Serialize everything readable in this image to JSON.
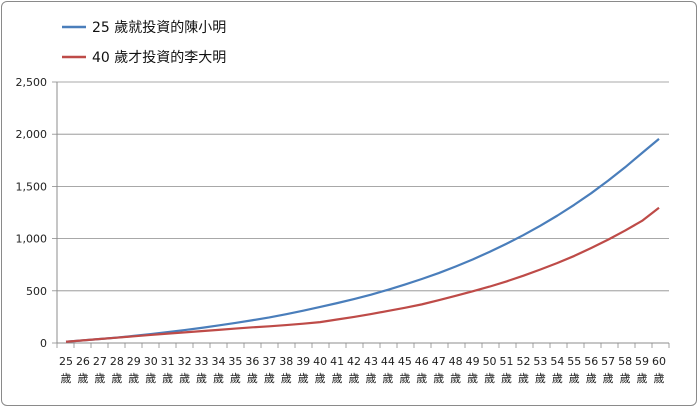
{
  "chart_data": {
    "type": "line",
    "categories": [
      "25 歲",
      "26 歲",
      "27 歲",
      "28 歲",
      "29 歲",
      "30 歲",
      "31 歲",
      "32 歲",
      "33 歲",
      "34 歲",
      "35 歲",
      "36 歲",
      "37 歲",
      "38 歲",
      "39 歲",
      "40 歲",
      "41 歲",
      "42 歲",
      "43 歲",
      "44 歲",
      "45 歲",
      "46 歲",
      "47 歲",
      "48 歲",
      "49 歲",
      "50 歲",
      "51 歲",
      "52 歲",
      "53 歲",
      "54 歲",
      "55 歲",
      "56 歲",
      "57 歲",
      "58 歲",
      "59 歲",
      "60 歲"
    ],
    "series": [
      {
        "name": "25 歲就投資的陳小明",
        "color": "#4a7ebb",
        "values": [
          12,
          25,
          38,
          52,
          68,
          85,
          104,
          124,
          145,
          168,
          192,
          218,
          245,
          276,
          310,
          345,
          382,
          421,
          463,
          510,
          560,
          613,
          670,
          733,
          800,
          873,
          951,
          1034,
          1124,
          1220,
          1324,
          1435,
          1555,
          1683,
          1820,
          1955
        ]
      },
      {
        "name": "40 歲才投資的李大明",
        "color": "#be4b48",
        "values": [
          12,
          25,
          38,
          51,
          64,
          77,
          90,
          102,
          114,
          126,
          138,
          150,
          160,
          172,
          185,
          200,
          225,
          250,
          277,
          307,
          337,
          370,
          410,
          452,
          495,
          540,
          590,
          645,
          704,
          766,
          834,
          910,
          990,
          1077,
          1170,
          1295
        ]
      }
    ],
    "ylim": [
      0,
      2500
    ],
    "yticks": [
      "0",
      "500",
      "1,000",
      "1,500",
      "2,000",
      "2,500"
    ],
    "grid": true,
    "legend": "top-left"
  }
}
